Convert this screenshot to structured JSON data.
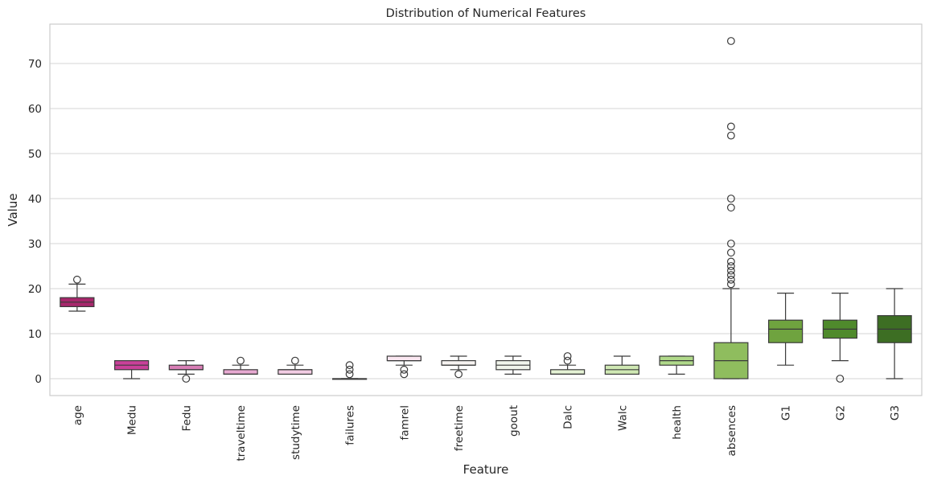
{
  "chart_data": {
    "type": "box",
    "title": "Distribution of Numerical Features",
    "xlabel": "Feature",
    "ylabel": "Value",
    "ylim": [
      -3.75,
      78.75
    ],
    "yticks": [
      0,
      10,
      20,
      30,
      40,
      50,
      60,
      70
    ],
    "grid": true,
    "legend": "none",
    "categories": [
      "age",
      "Medu",
      "Fedu",
      "traveltime",
      "studytime",
      "failures",
      "famrel",
      "freetime",
      "goout",
      "Dalc",
      "Walc",
      "health",
      "absences",
      "G1",
      "G2",
      "G3"
    ],
    "colors": [
      "#a8276c",
      "#c9419a",
      "#d87eb5",
      "#e7a9d1",
      "#f2cce3",
      "#fbeaf3",
      "#fbe7f1",
      "#f6f3f1",
      "#f1f5ec",
      "#e4f2d4",
      "#cfe8b3",
      "#b0d98a",
      "#8fbd5e",
      "#6fa33f",
      "#4f8a2c",
      "#3d6e23"
    ],
    "boxes": [
      {
        "min": 15,
        "q1": 16,
        "median": 17,
        "q3": 18,
        "max": 21,
        "outliers": [
          22
        ]
      },
      {
        "min": 0,
        "q1": 2,
        "median": 3,
        "q3": 4,
        "max": 4,
        "outliers": []
      },
      {
        "min": 1,
        "q1": 2,
        "median": 2,
        "q3": 3,
        "max": 4,
        "outliers": [
          0
        ]
      },
      {
        "min": 1,
        "q1": 1,
        "median": 1,
        "q3": 2,
        "max": 3,
        "outliers": [
          4
        ]
      },
      {
        "min": 1,
        "q1": 1,
        "median": 2,
        "q3": 2,
        "max": 3,
        "outliers": [
          4
        ]
      },
      {
        "min": 0,
        "q1": 0,
        "median": 0,
        "q3": 0,
        "max": 0,
        "outliers": [
          1,
          2,
          3
        ]
      },
      {
        "min": 3,
        "q1": 4,
        "median": 4,
        "q3": 5,
        "max": 5,
        "outliers": [
          1,
          2
        ]
      },
      {
        "min": 2,
        "q1": 3,
        "median": 3,
        "q3": 4,
        "max": 5,
        "outliers": [
          1
        ]
      },
      {
        "min": 1,
        "q1": 2,
        "median": 3,
        "q3": 4,
        "max": 5,
        "outliers": []
      },
      {
        "min": 1,
        "q1": 1,
        "median": 1,
        "q3": 2,
        "max": 3,
        "outliers": [
          4,
          5
        ]
      },
      {
        "min": 1,
        "q1": 1,
        "median": 2,
        "q3": 3,
        "max": 5,
        "outliers": []
      },
      {
        "min": 1,
        "q1": 3,
        "median": 4,
        "q3": 5,
        "max": 5,
        "outliers": []
      },
      {
        "min": 0,
        "q1": 0,
        "median": 4,
        "q3": 8,
        "max": 20,
        "outliers": [
          21,
          22,
          23,
          24,
          25,
          26,
          28,
          30,
          38,
          40,
          54,
          56,
          75
        ]
      },
      {
        "min": 3,
        "q1": 8,
        "median": 11,
        "q3": 13,
        "max": 19,
        "outliers": []
      },
      {
        "min": 4,
        "q1": 9,
        "median": 11,
        "q3": 13,
        "max": 19,
        "outliers": [
          0
        ]
      },
      {
        "min": 0,
        "q1": 8,
        "median": 11,
        "q3": 14,
        "max": 20,
        "outliers": []
      }
    ]
  }
}
